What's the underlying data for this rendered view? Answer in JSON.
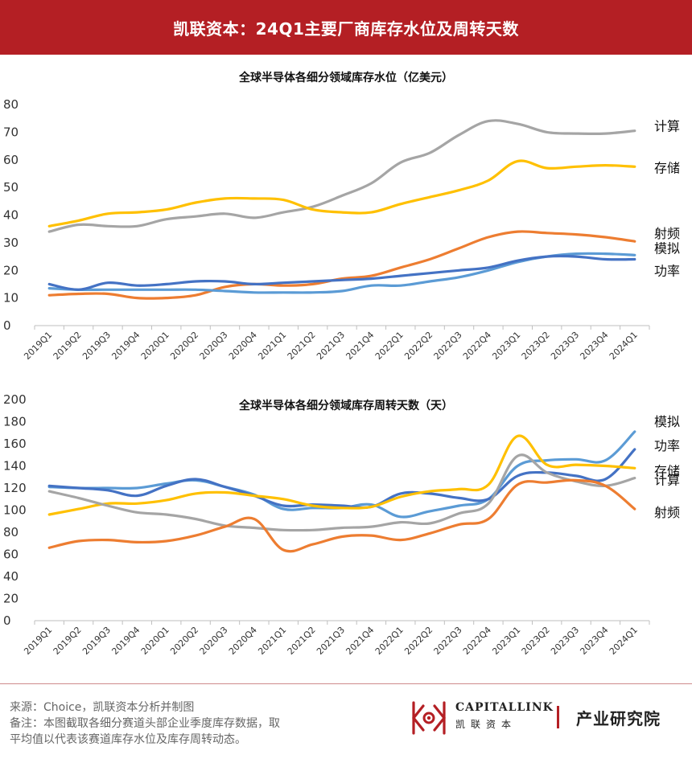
{
  "header": {
    "title": "凯联资本：24Q1主要厂商库存水位及周转天数"
  },
  "chart_data": [
    {
      "type": "line",
      "title": "全球半导体各细分领域库存水位（亿美元）",
      "categories": [
        "2019Q1",
        "2019Q2",
        "2019Q3",
        "2019Q4",
        "2020Q1",
        "2020Q2",
        "2020Q3",
        "2020Q4",
        "2021Q1",
        "2021Q2",
        "2021Q3",
        "2021Q4",
        "2022Q1",
        "2022Q2",
        "2022Q3",
        "2022Q4",
        "2023Q1",
        "2023Q2",
        "2023Q3",
        "2023Q4",
        "2024Q1"
      ],
      "ylim": [
        0,
        80
      ],
      "yticks": [
        0,
        10,
        20,
        30,
        40,
        50,
        60,
        70,
        80
      ],
      "grid": false,
      "series": [
        {
          "name": "计算",
          "color": "#a5a5a5",
          "values": [
            34,
            36.5,
            36,
            36,
            38.5,
            39.5,
            40.5,
            39,
            41,
            43,
            47,
            51.5,
            59,
            62.5,
            69,
            74,
            73,
            70,
            69.5,
            69.5,
            70.5
          ]
        },
        {
          "name": "存储",
          "color": "#ffc000",
          "values": [
            36,
            38,
            40.5,
            41,
            42,
            44.5,
            46,
            46,
            45.5,
            42,
            41,
            41,
            44,
            46.5,
            49,
            52.5,
            59.5,
            57,
            57.5,
            58,
            57.5
          ]
        },
        {
          "name": "射频",
          "color": "#ed7d31",
          "values": [
            11,
            11.5,
            11.5,
            10,
            10,
            11,
            14,
            15,
            14.5,
            15,
            17,
            18,
            21,
            24,
            28,
            32,
            34,
            33.5,
            33,
            32,
            30.5
          ]
        },
        {
          "name": "模拟",
          "color": "#5b9bd5",
          "values": [
            13.5,
            13,
            13,
            13,
            13,
            13,
            12.5,
            12,
            12,
            12,
            12.5,
            14.5,
            14.5,
            16,
            17.5,
            20,
            23,
            25,
            26,
            26,
            25.5
          ]
        },
        {
          "name": "功率",
          "color": "#4472c4",
          "values": [
            15,
            13,
            15.5,
            14.5,
            15,
            16,
            16,
            15,
            15.5,
            16,
            16.5,
            17,
            18,
            19,
            20,
            21,
            23.5,
            25,
            25,
            24,
            24
          ]
        }
      ]
    },
    {
      "type": "line",
      "title": "全球半导体各细分领域库存周转天数（天）",
      "categories": [
        "2019Q1",
        "2019Q2",
        "2019Q3",
        "2019Q4",
        "2020Q1",
        "2020Q2",
        "2020Q3",
        "2020Q4",
        "2021Q1",
        "2021Q2",
        "2021Q3",
        "2021Q4",
        "2022Q1",
        "2022Q2",
        "2022Q3",
        "2022Q4",
        "2023Q1",
        "2023Q2",
        "2023Q3",
        "2023Q4",
        "2024Q1"
      ],
      "ylim": [
        0,
        200
      ],
      "yticks": [
        0,
        20,
        40,
        60,
        80,
        100,
        120,
        140,
        160,
        180,
        200
      ],
      "grid": false,
      "series": [
        {
          "name": "模拟",
          "color": "#5b9bd5",
          "values": [
            121,
            120,
            120,
            120,
            124,
            127,
            121,
            114,
            101,
            102,
            102,
            105,
            94,
            99,
            104,
            110,
            140,
            145,
            146,
            145,
            171
          ]
        },
        {
          "name": "功率",
          "color": "#4472c4",
          "values": [
            122,
            120,
            118,
            113,
            122,
            128,
            121,
            113,
            104,
            105,
            104,
            103,
            115,
            115,
            111,
            110,
            131,
            134,
            131,
            128,
            155
          ]
        },
        {
          "name": "存储",
          "color": "#ffc000",
          "values": [
            96,
            101,
            106,
            106,
            109,
            115,
            116,
            113,
            110,
            104,
            102,
            103,
            112,
            117,
            119,
            123,
            167,
            141,
            141,
            140,
            138
          ]
        },
        {
          "name": "计算",
          "color": "#a5a5a5",
          "values": [
            117,
            111,
            104,
            98,
            96,
            92,
            86,
            84,
            82,
            82,
            84,
            85,
            89,
            88,
            97,
            106,
            149,
            134,
            126,
            122,
            129
          ]
        },
        {
          "name": "射频",
          "color": "#ed7d31",
          "values": [
            66,
            72,
            73,
            71,
            72,
            77,
            85,
            92,
            64,
            69,
            76,
            77,
            73,
            79,
            87,
            92,
            123,
            125,
            127,
            122,
            101
          ]
        }
      ]
    }
  ],
  "footer": {
    "source_line1": "来源：Choice，凯联资本分析并制图",
    "source_line2": "备注：本图截取各细分赛道头部企业季度库存数据，取",
    "source_line3": "平均值以代表该赛道库存水位及库存周转动态。",
    "logo_en": "CAPITALLINK",
    "logo_cn": "凯联资本",
    "dept": "产业研究院",
    "brand_color": "#b41f24"
  }
}
